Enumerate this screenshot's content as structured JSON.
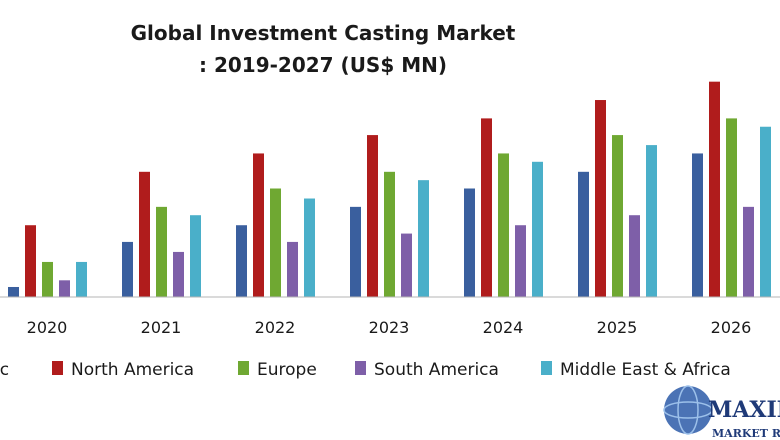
{
  "chart_data": {
    "type": "bar",
    "title": "Global Investment Casting Market",
    "subtitle": ": 2019-2027 (US$ MN)",
    "xlabel": "",
    "ylabel": "",
    "categories": [
      "2020",
      "2021",
      "2022",
      "2023",
      "2024",
      "2025",
      "2026"
    ],
    "ylim": [
      0,
      130
    ],
    "grid": false,
    "legend_position": "bottom",
    "series": [
      {
        "name": "fic",
        "color": "#3a5f9e",
        "values": [
          6,
          33,
          43,
          54,
          65,
          75,
          86
        ]
      },
      {
        "name": "North America",
        "color": "#b01c1c",
        "values": [
          43,
          75,
          86,
          97,
          107,
          118,
          129
        ]
      },
      {
        "name": "Europe",
        "color": "#6fa832",
        "values": [
          21,
          54,
          65,
          75,
          86,
          97,
          107
        ]
      },
      {
        "name": "South America",
        "color": "#7e5fa8",
        "values": [
          10,
          27,
          33,
          38,
          43,
          49,
          54
        ]
      },
      {
        "name": "Middle East & Africa",
        "color": "#4aafc9",
        "values": [
          21,
          49,
          59,
          70,
          81,
          91,
          102
        ]
      }
    ]
  },
  "watermark": {
    "line1": "MAXIM",
    "line2": "MARKET RES"
  }
}
